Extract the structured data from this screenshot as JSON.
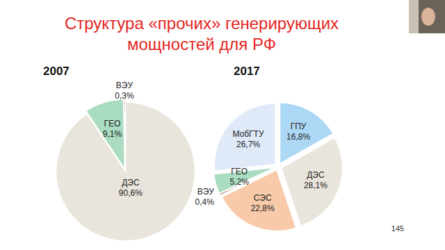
{
  "title": [
    "Структура «прочих» генерирующих",
    "мощностей для РФ"
  ],
  "page_number": 145,
  "chart_data": [
    {
      "type": "pie",
      "title": "2007",
      "categories": [
        "ДЭС",
        "ГЕО",
        "ВЭУ"
      ],
      "values": [
        90.6,
        9.1,
        0.3
      ],
      "value_labels": [
        "90,6%",
        "9,1%",
        "0,3%"
      ],
      "colors": [
        "#e9e5dc",
        "#a9dcc1",
        "#8b2c1a"
      ],
      "data_labels": true
    },
    {
      "type": "pie",
      "title": "2017",
      "categories": [
        "ГПУ",
        "ДЭС",
        "СЭС",
        "ВЭУ",
        "ГЕО",
        "МобГТУ"
      ],
      "values": [
        16.8,
        28.1,
        22.8,
        0.4,
        5.2,
        26.7
      ],
      "value_labels": [
        "16,8%",
        "28,1%",
        "22,8%",
        "0,4%",
        "5,2%",
        "26,7%"
      ],
      "colors": [
        "#add8f5",
        "#e9e5dc",
        "#f8caa9",
        "#8b2c1a",
        "#a9dcc1",
        "#dfe9f8"
      ],
      "data_labels": true
    }
  ]
}
